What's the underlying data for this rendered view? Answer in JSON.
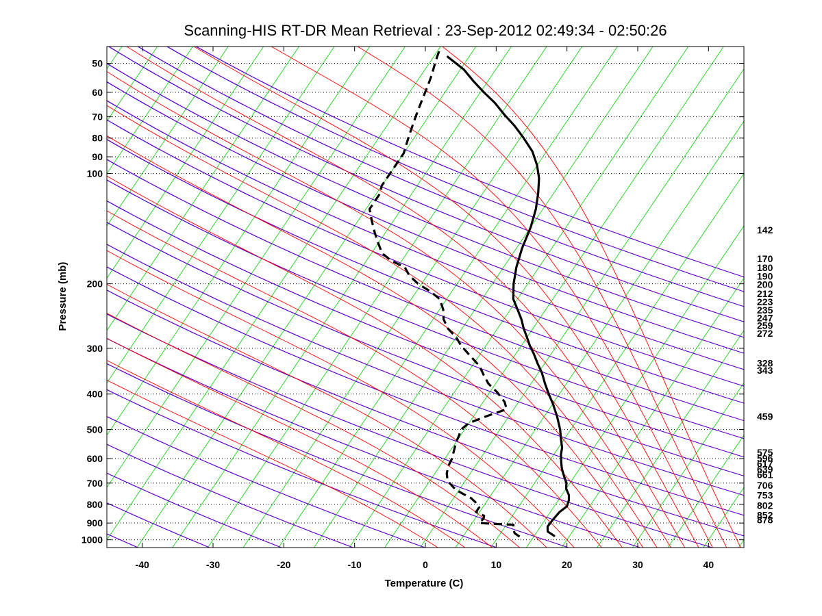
{
  "chart_data": {
    "type": "line",
    "title": "Scanning-HIS RT-DR Mean Retrieval : 23-Sep-2012 02:49:34 - 02:50:26",
    "xlabel": "Temperature (C)",
    "ylabel": "Pressure (mb)",
    "xlim": [
      -45,
      45
    ],
    "ylim": [
      1050,
      45
    ],
    "y_scale": "log",
    "skew_per_decade_c": 35,
    "grid": true,
    "x_ticks": [
      -40,
      -30,
      -20,
      -10,
      0,
      10,
      20,
      30,
      40
    ],
    "y_ticks": [
      50,
      60,
      70,
      80,
      90,
      100,
      200,
      300,
      400,
      500,
      600,
      700,
      800,
      900,
      1000
    ],
    "dry_adiabat_theta_k": [
      220,
      230,
      240,
      250,
      260,
      270,
      280,
      290,
      300,
      310,
      320,
      330,
      340,
      350,
      360,
      370,
      380,
      390,
      400,
      410,
      420,
      430,
      440,
      450,
      460,
      470
    ],
    "moist_adiabat_start_c": [
      0,
      4,
      8,
      12,
      16,
      20,
      24,
      27,
      30,
      32,
      34,
      36,
      38,
      40,
      42,
      44
    ],
    "right_labels": [
      {
        "text": "142",
        "p": 142
      },
      {
        "text": "170",
        "p": 170
      },
      {
        "text": "180",
        "p": 180
      },
      {
        "text": "190",
        "p": 190
      },
      {
        "text": "200",
        "p": 200
      },
      {
        "text": "212",
        "p": 212
      },
      {
        "text": "223",
        "p": 223
      },
      {
        "text": "235",
        "p": 235
      },
      {
        "text": "247",
        "p": 247
      },
      {
        "text": "259",
        "p": 259
      },
      {
        "text": "272",
        "p": 272
      },
      {
        "text": "328",
        "p": 328
      },
      {
        "text": "343",
        "p": 343
      },
      {
        "text": "459",
        "p": 459
      },
      {
        "text": "575",
        "p": 575
      },
      {
        "text": "596",
        "p": 596
      },
      {
        "text": "617",
        "p": 617
      },
      {
        "text": "639",
        "p": 639
      },
      {
        "text": "661",
        "p": 661
      },
      {
        "text": "706",
        "p": 706
      },
      {
        "text": "753",
        "p": 753
      },
      {
        "text": "802",
        "p": 802
      },
      {
        "text": "852",
        "p": 852
      },
      {
        "text": "878",
        "p": 878
      }
    ],
    "series": [
      {
        "style": "solid",
        "points": [
          [
            17.8,
            975
          ],
          [
            16.5,
            950
          ],
          [
            16.0,
            920
          ],
          [
            16.1,
            880
          ],
          [
            16.3,
            840
          ],
          [
            16.8,
            810
          ],
          [
            16.5,
            780
          ],
          [
            16.0,
            755
          ],
          [
            15.0,
            725
          ],
          [
            14.5,
            700
          ],
          [
            13.5,
            670
          ],
          [
            12.5,
            640
          ],
          [
            11.8,
            615
          ],
          [
            11.0,
            585
          ],
          [
            10.5,
            560
          ],
          [
            9.5,
            530
          ],
          [
            8.5,
            500
          ],
          [
            6.8,
            460
          ],
          [
            5.0,
            425
          ],
          [
            3.5,
            400
          ],
          [
            2.0,
            375
          ],
          [
            0.5,
            350
          ],
          [
            -1.0,
            330
          ],
          [
            -2.5,
            310
          ],
          [
            -3.8,
            295
          ],
          [
            -5.0,
            280
          ],
          [
            -6.3,
            265
          ],
          [
            -7.5,
            250
          ],
          [
            -9.0,
            235
          ],
          [
            -10.6,
            220
          ],
          [
            -12.0,
            200
          ],
          [
            -13.2,
            180
          ],
          [
            -14.2,
            160
          ],
          [
            -15.0,
            140
          ],
          [
            -16.0,
            125
          ],
          [
            -17.2,
            113
          ],
          [
            -18.5,
            103
          ],
          [
            -20.0,
            95
          ],
          [
            -22.0,
            87
          ],
          [
            -24.5,
            80
          ],
          [
            -27.0,
            74
          ],
          [
            -29.5,
            69
          ],
          [
            -32.0,
            64
          ],
          [
            -34.5,
            60
          ],
          [
            -37.0,
            56
          ],
          [
            -39.5,
            52
          ],
          [
            -43.0,
            48
          ]
        ]
      },
      {
        "style": "dashed",
        "points": [
          [
            13.0,
            980
          ],
          [
            12.0,
            960
          ],
          [
            11.5,
            940
          ],
          [
            11.0,
            910
          ],
          [
            8.5,
            905
          ],
          [
            6.0,
            900
          ],
          [
            6.2,
            875
          ],
          [
            6.0,
            860
          ],
          [
            4.5,
            840
          ],
          [
            4.5,
            815
          ],
          [
            3.5,
            790
          ],
          [
            2.5,
            770
          ],
          [
            1.0,
            750
          ],
          [
            -0.5,
            730
          ],
          [
            -1.5,
            710
          ],
          [
            -2.5,
            690
          ],
          [
            -3.3,
            660
          ],
          [
            -3.8,
            630
          ],
          [
            -4.0,
            600
          ],
          [
            -4.5,
            570
          ],
          [
            -5.0,
            540
          ],
          [
            -5.2,
            520
          ],
          [
            -5.5,
            500
          ],
          [
            -5.0,
            480
          ],
          [
            -3.2,
            460
          ],
          [
            -1.0,
            440
          ],
          [
            -2.0,
            420
          ],
          [
            -4.0,
            395
          ],
          [
            -6.0,
            375
          ],
          [
            -7.5,
            355
          ],
          [
            -9.0,
            335
          ],
          [
            -11.2,
            315
          ],
          [
            -13.5,
            295
          ],
          [
            -15.0,
            280
          ],
          [
            -17.0,
            265
          ],
          [
            -18.5,
            250
          ],
          [
            -19.5,
            235
          ],
          [
            -21.0,
            220
          ],
          [
            -23.0,
            210
          ],
          [
            -25.5,
            200
          ],
          [
            -27.5,
            190
          ],
          [
            -29.0,
            180
          ],
          [
            -31.5,
            173
          ],
          [
            -33.5,
            165
          ],
          [
            -35.0,
            155
          ],
          [
            -36.5,
            145
          ],
          [
            -38.0,
            135
          ],
          [
            -39.5,
            125
          ],
          [
            -39.5,
            118
          ],
          [
            -39.5,
            113
          ],
          [
            -40.0,
            108
          ],
          [
            -40.0,
            103
          ],
          [
            -40.0,
            98
          ],
          [
            -40.0,
            93
          ],
          [
            -40.0,
            88
          ],
          [
            -40.5,
            83
          ],
          [
            -41.0,
            78
          ],
          [
            -41.5,
            73
          ],
          [
            -42.0,
            68
          ],
          [
            -42.5,
            63
          ],
          [
            -43.0,
            58
          ],
          [
            -43.5,
            54
          ],
          [
            -44.0,
            51
          ],
          [
            -44.5,
            48
          ],
          [
            -44.8,
            46
          ]
        ]
      }
    ]
  }
}
